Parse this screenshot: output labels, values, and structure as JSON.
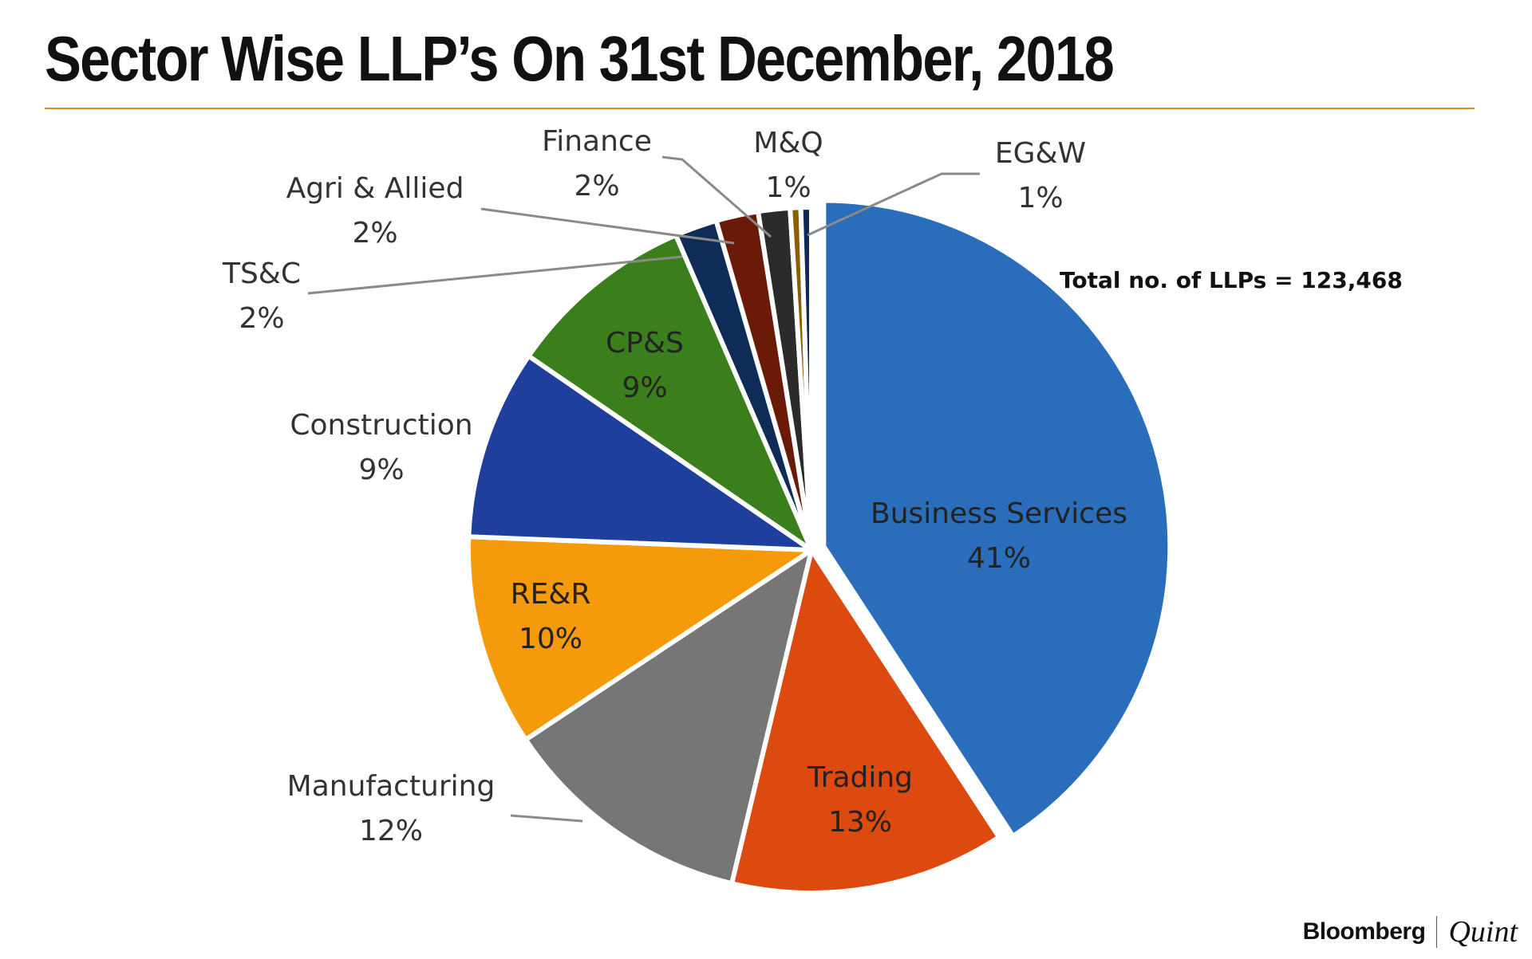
{
  "title": "Sector Wise LLP’s On 31st December, 2018",
  "chart_data": {
    "type": "pie",
    "title": "Sector Wise LLP’s On 31st December, 2018",
    "annotation": "Total no. of LLPs = 123,468",
    "slices": [
      {
        "label": "Business Services",
        "value": 41,
        "display": "41%",
        "color": "#2a6ebb"
      },
      {
        "label": "Trading",
        "value": 13,
        "display": "13%",
        "color": "#dc4a10"
      },
      {
        "label": "Manufacturing",
        "value": 12,
        "display": "12%",
        "color": "#767676"
      },
      {
        "label": "RE&R",
        "value": 10,
        "display": "10%",
        "color": "#f59a0b"
      },
      {
        "label": "Construction",
        "value": 9,
        "display": "9%",
        "color": "#1f3f9c"
      },
      {
        "label": "CP&S",
        "value": 9,
        "display": "9%",
        "color": "#3a7f1c"
      },
      {
        "label": "TS&C",
        "value": 2,
        "display": "2%",
        "color": "#0e2c57"
      },
      {
        "label": "Agri & Allied",
        "value": 2,
        "display": "2%",
        "color": "#6b1a08"
      },
      {
        "label": "Finance",
        "value": 1.5,
        "display": "2%",
        "color": "#2b2b2b"
      },
      {
        "label": "M&Q",
        "value": 0.5,
        "display": "1%",
        "color": "#8a5f00"
      },
      {
        "label": "EG&W",
        "value": 0.5,
        "display": "1%",
        "color": "#10295a"
      }
    ]
  },
  "brand": {
    "left": "Bloomberg",
    "right": "Quint"
  }
}
